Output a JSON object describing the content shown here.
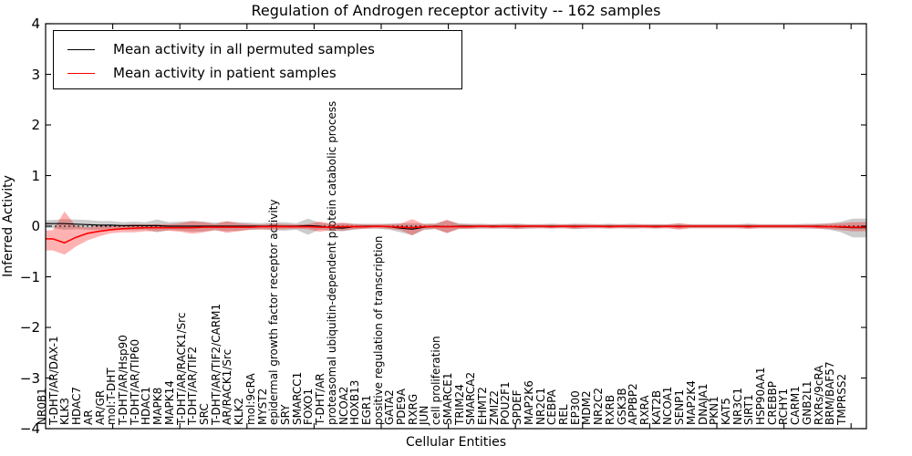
{
  "title": "Regulation of Androgen receptor activity -- 162 samples",
  "axes": {
    "y_label": "Inferred Activity",
    "x_label": "Cellular Entities",
    "y_ticks": [
      "4",
      "3",
      "2",
      "1",
      "0",
      "−1",
      "−2",
      "−3",
      "−4"
    ]
  },
  "legend": {
    "entries": [
      {
        "label": "Mean activity in all permuted samples",
        "color": "#000000"
      },
      {
        "label": "Mean activity in patient samples",
        "color": "#ff0000"
      }
    ]
  },
  "chart_data": {
    "type": "line",
    "title": "Regulation of Androgen receptor activity -- 162 samples",
    "xlabel": "Cellular Entities",
    "ylabel": "Inferred Activity",
    "ylim": [
      -4,
      4
    ],
    "zero_line": true,
    "grid": false,
    "legend_position": "upper left",
    "categories": [
      "NR0B1",
      "T-DHT/AR/DAX-1",
      "KLK3",
      "HDAC7",
      "AR",
      "AR/GR",
      "mol:T-DHT",
      "T-DHT/AR/Hsp90",
      "T-DHT/AR/TIP60",
      "HDAC1",
      "MAPK8",
      "MAPK14",
      "T-DHT/AR/RACK1/Src",
      "T-DHT/AR/TIF2",
      "SRC",
      "T-DHT/AR/TIF2/CARM1",
      "AR/RACK1/Src",
      "KLK2",
      "mol:9cRA",
      "MYST2",
      "epidermal growth factor receptor activity",
      "SRY",
      "SMARCC1",
      "FOXO1",
      "T-DHT/AR",
      "proteasomal ubiquitin-dependent protein catabolic process",
      "NCOA2",
      "HOXB13",
      "EGR1",
      "positive regulation of transcription",
      "GATA2",
      "PDE9A",
      "RXRG",
      "JUN",
      "cell proliferation",
      "SMARCE1",
      "TRIM24",
      "SMARCA2",
      "EHMT2",
      "ZMIZ2",
      "POU2F1",
      "SPDEF",
      "MAP2K6",
      "NR2C1",
      "CEBPA",
      "REL",
      "EP300",
      "MDM2",
      "NR2C2",
      "RXRB",
      "GSK3B",
      "APPBP2",
      "RXRA",
      "KAT2B",
      "NCOA1",
      "SENP1",
      "MAP2K4",
      "DNAJA1",
      "PKN1",
      "KAT5",
      "NR3C1",
      "SIRT1",
      "HSP90AA1",
      "CREBBP",
      "RCHY1",
      "CARM1",
      "GNB2L1",
      "RXRs/9cRA",
      "BRM/BAF57",
      "TMPRSS2"
    ],
    "series": [
      {
        "name": "Mean activity in all permuted samples",
        "color": "#000000",
        "band_color": "rgba(128,128,128,0.40)",
        "values": [
          0.05,
          0.05,
          0.04,
          0.03,
          0.02,
          0.02,
          0.01,
          0.01,
          0.01,
          0.01,
          0,
          0,
          0,
          0,
          0,
          0,
          0,
          0,
          0,
          0,
          0,
          0,
          0.01,
          0,
          -0.03,
          -0.04,
          -0.01,
          0,
          0,
          -0.01,
          -0.04,
          -0.06,
          -0.02,
          0,
          -0.01,
          0,
          0,
          0,
          0,
          0,
          0,
          0,
          0,
          0,
          0,
          0,
          0,
          0,
          0,
          0,
          0,
          0,
          0,
          0,
          0,
          0,
          0,
          0,
          0,
          0,
          0,
          0,
          0,
          0,
          0,
          0,
          0,
          -0.01,
          -0.02,
          -0.03
        ],
        "band_upper": [
          0.12,
          0.14,
          0.13,
          0.12,
          0.1,
          0.1,
          0.08,
          0.09,
          0.08,
          0.13,
          0.08,
          0.09,
          0.1,
          0.09,
          0.07,
          0.09,
          0.08,
          0.07,
          0.06,
          0.08,
          0.08,
          0.06,
          0.15,
          0.07,
          0.05,
          0.06,
          0.05,
          0.05,
          0.05,
          0.05,
          0.06,
          0.06,
          0.05,
          0.06,
          0.11,
          0.06,
          0.05,
          0.05,
          0.04,
          0.05,
          0.05,
          0.04,
          0.04,
          0.05,
          0.04,
          0.05,
          0.05,
          0.04,
          0.05,
          0.04,
          0.05,
          0.04,
          0.04,
          0.04,
          0.05,
          0.04,
          0.04,
          0.04,
          0.04,
          0.04,
          0.05,
          0.04,
          0.04,
          0.04,
          0.04,
          0.05,
          0.05,
          0.06,
          0.09,
          0.15
        ],
        "band_lower": [
          -0.04,
          -0.07,
          -0.06,
          -0.07,
          -0.07,
          -0.06,
          -0.07,
          -0.08,
          -0.07,
          -0.12,
          -0.08,
          -0.09,
          -0.11,
          -0.1,
          -0.08,
          -0.1,
          -0.09,
          -0.07,
          -0.07,
          -0.08,
          -0.09,
          -0.07,
          -0.17,
          -0.07,
          -0.09,
          -0.1,
          -0.07,
          -0.05,
          -0.05,
          -0.07,
          -0.12,
          -0.18,
          -0.08,
          -0.06,
          -0.13,
          -0.06,
          -0.05,
          -0.05,
          -0.05,
          -0.05,
          -0.06,
          -0.05,
          -0.04,
          -0.05,
          -0.04,
          -0.06,
          -0.05,
          -0.04,
          -0.05,
          -0.04,
          -0.05,
          -0.04,
          -0.05,
          -0.04,
          -0.05,
          -0.04,
          -0.04,
          -0.04,
          -0.04,
          -0.04,
          -0.05,
          -0.04,
          -0.04,
          -0.04,
          -0.04,
          -0.05,
          -0.05,
          -0.07,
          -0.12,
          -0.22
        ]
      },
      {
        "name": "Mean activity in patient samples",
        "color": "#ff0000",
        "band_color": "rgba(255,0,0,0.30)",
        "values": [
          -0.25,
          -0.33,
          -0.22,
          -0.14,
          -0.1,
          -0.07,
          -0.05,
          -0.04,
          -0.03,
          -0.03,
          -0.03,
          -0.03,
          -0.03,
          -0.02,
          -0.02,
          -0.02,
          -0.02,
          -0.02,
          -0.01,
          -0.01,
          -0.01,
          -0.01,
          -0.01,
          -0.02,
          -0.02,
          -0.01,
          -0.01,
          -0.01,
          0,
          -0.01,
          -0.02,
          -0.03,
          -0.01,
          -0.01,
          -0.01,
          -0.01,
          -0.01,
          0,
          -0.01,
          0,
          -0.01,
          0,
          0,
          -0.01,
          0,
          -0.01,
          0,
          0,
          -0.01,
          0,
          0,
          0,
          -0.01,
          0,
          -0.01,
          0,
          0,
          0,
          0,
          0,
          -0.01,
          0,
          0,
          0,
          0,
          0,
          -0.01,
          -0.01,
          -0.01,
          -0.02
        ],
        "band_upper": [
          -0.08,
          0.29,
          0.0,
          -0.02,
          0.0,
          0.0,
          0.02,
          0.04,
          0.03,
          0.04,
          0.04,
          0.06,
          0.1,
          0.08,
          0.04,
          0.1,
          0.06,
          0.04,
          0.03,
          0.05,
          0.04,
          0.03,
          0.04,
          0.09,
          0.05,
          0.07,
          0.04,
          0.03,
          0.03,
          0.04,
          0.05,
          0.14,
          0.04,
          0.04,
          0.13,
          0.04,
          0.03,
          0.03,
          0.03,
          0.03,
          0.04,
          0.03,
          0.03,
          0.03,
          0.03,
          0.04,
          0.03,
          0.03,
          0.03,
          0.03,
          0.03,
          0.03,
          0.03,
          0.03,
          0.06,
          0.03,
          0.03,
          0.03,
          0.03,
          0.03,
          0.04,
          0.03,
          0.03,
          0.03,
          0.03,
          0.03,
          0.04,
          0.05,
          0.06,
          0.08
        ],
        "band_lower": [
          -0.48,
          -0.56,
          -0.4,
          -0.28,
          -0.2,
          -0.14,
          -0.12,
          -0.12,
          -0.1,
          -0.1,
          -0.09,
          -0.11,
          -0.15,
          -0.12,
          -0.08,
          -0.13,
          -0.1,
          -0.07,
          -0.06,
          -0.07,
          -0.06,
          -0.05,
          -0.06,
          -0.11,
          -0.08,
          -0.09,
          -0.06,
          -0.05,
          -0.04,
          -0.05,
          -0.08,
          -0.18,
          -0.06,
          -0.05,
          -0.14,
          -0.05,
          -0.05,
          -0.04,
          -0.04,
          -0.04,
          -0.05,
          -0.04,
          -0.04,
          -0.04,
          -0.04,
          -0.05,
          -0.04,
          -0.04,
          -0.04,
          -0.04,
          -0.04,
          -0.04,
          -0.04,
          -0.04,
          -0.07,
          -0.04,
          -0.04,
          -0.04,
          -0.04,
          -0.04,
          -0.05,
          -0.04,
          -0.04,
          -0.04,
          -0.04,
          -0.04,
          -0.05,
          -0.06,
          -0.08,
          -0.1
        ]
      }
    ]
  }
}
